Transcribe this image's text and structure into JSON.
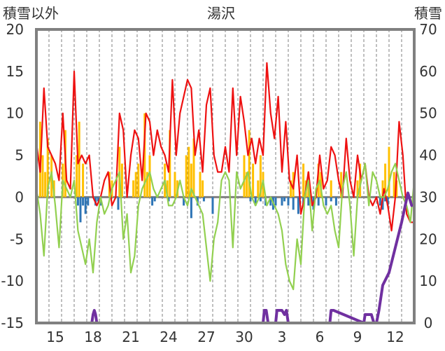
{
  "chart_data": {
    "type": "line",
    "title": "湯沢",
    "ylabel_left": "積雪以外",
    "ylabel_right": "積雪",
    "ylim_left": [
      -15,
      20
    ],
    "ylim_right": [
      0,
      70
    ],
    "yticks_left": [
      20,
      15,
      10,
      5,
      0,
      -5,
      -10,
      -15
    ],
    "yticks_right": [
      70,
      60,
      50,
      40,
      30,
      20,
      10,
      0
    ],
    "x_tick_labels": [
      "15",
      "18",
      "21",
      "24",
      "27",
      "30",
      "3",
      "6",
      "9",
      "12"
    ],
    "x_range_days": [
      0,
      30
    ],
    "x_tick_days": [
      1.5,
      4.5,
      7.5,
      10.5,
      13.5,
      16.5,
      19.5,
      22.5,
      25.5,
      28.5
    ],
    "grid": "vertical dashed",
    "colors": {
      "max_temp": "#ee1111",
      "min_temp": "#92d050",
      "precip": "#ffc000",
      "negative_bars": "#2e75b6",
      "snow_depth": "#7030a0",
      "zero_line": "#808080",
      "frame": "#808080"
    },
    "series": [
      {
        "key": "max_temp",
        "axis": "left",
        "x": [
          0,
          0.3,
          0.6,
          0.9,
          1.2,
          1.5,
          1.8,
          2.1,
          2.4,
          2.7,
          3.0,
          3.3,
          3.6,
          3.9,
          4.2,
          4.5,
          4.8,
          5.1,
          5.4,
          5.7,
          6.0,
          6.3,
          6.6,
          6.9,
          7.2,
          7.5,
          7.8,
          8.1,
          8.4,
          8.7,
          9.0,
          9.3,
          9.6,
          9.9,
          10.2,
          10.5,
          10.8,
          11.1,
          11.4,
          11.7,
          12.0,
          12.3,
          12.6,
          12.9,
          13.2,
          13.5,
          13.8,
          14.1,
          14.4,
          14.7,
          15.0,
          15.3,
          15.6,
          15.9,
          16.2,
          16.5,
          16.8,
          17.1,
          17.4,
          17.7,
          18.0,
          18.3,
          18.6,
          18.9,
          19.2,
          19.5,
          19.8,
          20.1,
          20.4,
          20.7,
          21.0,
          21.3,
          21.6,
          21.9,
          22.2,
          22.5,
          22.8,
          23.1,
          23.4,
          23.7,
          24.0,
          24.3,
          24.6,
          24.9,
          25.2,
          25.5,
          25.8,
          26.1,
          26.4,
          26.7,
          27.0,
          27.3,
          27.6,
          27.9,
          28.2,
          28.5,
          28.8,
          29.1,
          29.4,
          29.7,
          30.0
        ],
        "values": [
          6.5,
          3,
          13,
          6,
          5,
          4,
          2,
          10,
          2,
          1,
          15,
          4,
          5,
          4,
          5,
          0,
          -1,
          0,
          2,
          3,
          -1,
          0,
          10,
          8,
          0,
          5,
          8,
          7,
          2,
          10,
          9,
          5,
          8,
          6,
          5,
          3,
          14,
          5,
          10,
          12,
          14,
          13,
          5,
          8,
          3,
          11,
          13,
          5,
          3,
          3,
          6,
          3,
          13,
          5,
          12,
          9,
          5,
          7,
          4,
          7,
          5,
          16,
          10,
          7,
          12,
          3,
          9,
          2,
          1,
          5,
          -2,
          0,
          3,
          -1,
          0,
          5,
          1,
          2,
          6,
          5,
          2,
          0,
          7,
          2,
          0,
          5,
          2,
          4,
          0,
          -1,
          0,
          -2,
          1,
          -1,
          -4,
          0,
          9,
          5,
          -2,
          -3,
          -3
        ]
      },
      {
        "key": "min_temp",
        "axis": "left",
        "x": [
          0,
          0.3,
          0.6,
          0.9,
          1.2,
          1.5,
          1.8,
          2.1,
          2.4,
          2.7,
          3.0,
          3.3,
          3.6,
          3.9,
          4.2,
          4.5,
          4.8,
          5.1,
          5.4,
          5.7,
          6.0,
          6.3,
          6.6,
          6.9,
          7.2,
          7.5,
          7.8,
          8.1,
          8.4,
          8.7,
          9.0,
          9.3,
          9.6,
          9.9,
          10.2,
          10.5,
          10.8,
          11.1,
          11.4,
          11.7,
          12.0,
          12.3,
          12.6,
          12.9,
          13.2,
          13.5,
          13.8,
          14.1,
          14.4,
          14.7,
          15.0,
          15.3,
          15.6,
          15.9,
          16.2,
          16.5,
          16.8,
          17.1,
          17.4,
          17.7,
          18.0,
          18.3,
          18.6,
          18.9,
          19.2,
          19.5,
          19.8,
          20.1,
          20.4,
          20.7,
          21.0,
          21.3,
          21.6,
          21.9,
          22.2,
          22.5,
          22.8,
          23.1,
          23.4,
          23.7,
          24.0,
          24.3,
          24.6,
          24.9,
          25.2,
          25.5,
          25.8,
          26.1,
          26.4,
          26.7,
          27.0,
          27.3,
          27.6,
          27.9,
          28.2,
          28.5,
          28.8,
          29.1,
          29.4,
          29.7,
          30.0
        ],
        "values": [
          1,
          -2,
          -7,
          1,
          3,
          -1,
          -6,
          2,
          1,
          0,
          2,
          -4,
          -6,
          -8,
          -5,
          -9,
          -3,
          0,
          -2,
          -1,
          1,
          2,
          3,
          -5,
          -2,
          -9,
          -7,
          -1,
          1,
          2,
          3,
          1,
          0,
          1,
          2,
          -1,
          -1,
          0,
          2,
          0,
          -1,
          1,
          0,
          -1,
          -2,
          -6,
          -10,
          -5,
          -3,
          2,
          3,
          2,
          -6,
          3,
          1,
          2,
          3,
          0,
          -1,
          0,
          2,
          -1,
          0,
          -1,
          -2,
          -4,
          -8,
          -10,
          -11,
          -5,
          -8,
          0,
          2,
          -4,
          1,
          2,
          -1,
          -2,
          -1,
          -4,
          -6,
          1,
          3,
          -1,
          -7,
          0,
          2,
          4,
          -1,
          3,
          2,
          0,
          0,
          1,
          3,
          4,
          2,
          0,
          -1,
          -3,
          2
        ]
      },
      {
        "key": "snow_depth",
        "axis": "right",
        "x": [
          0,
          4.4,
          4.5,
          4.6,
          4.7,
          4.8,
          18.0,
          18.1,
          18.25,
          18.4,
          19.0,
          19.1,
          19.3,
          19.5,
          19.7,
          19.85,
          20.0,
          22.5,
          23.3,
          23.4,
          23.5,
          23.6,
          26.0,
          26.1,
          26.6,
          26.8,
          27.0,
          27.2,
          27.5,
          28.0,
          28.5,
          29.0,
          29.5,
          29.8
        ],
        "values": [
          0,
          0,
          2,
          3,
          2,
          0,
          0,
          3,
          3,
          0,
          0,
          3,
          3,
          3,
          2,
          3,
          0,
          0,
          0,
          3,
          3,
          3,
          0,
          2,
          2,
          0,
          0,
          3,
          9,
          12,
          18,
          24,
          31,
          28
        ]
      }
    ],
    "bars": [
      {
        "key": "precip",
        "axis": "left",
        "x": [
          0.3,
          0.5,
          0.7,
          0.9,
          1.2,
          1.4,
          2.1,
          2.3,
          3.2,
          3.4,
          3.7,
          5.8,
          6.0,
          6.6,
          6.8,
          7.7,
          7.9,
          8.1,
          8.6,
          8.8,
          9.0,
          10.2,
          10.4,
          10.6,
          11.0,
          11.2,
          11.9,
          12.1,
          12.3,
          12.5,
          13.0,
          13.2,
          16.5,
          16.7,
          16.9,
          17.2,
          17.6,
          17.8,
          18.0,
          20.2,
          20.4,
          21.2,
          21.4,
          21.6,
          22.4,
          22.6,
          23.4,
          24.2,
          25.5,
          25.7,
          27.5,
          27.7,
          28.0,
          28.4,
          28.6
        ],
        "values": [
          9,
          5,
          3,
          7,
          5,
          2,
          4,
          8,
          5,
          9,
          4,
          3,
          2,
          6,
          4,
          2,
          3,
          4,
          10,
          3,
          5,
          4,
          2,
          8,
          3,
          2,
          5,
          6,
          4,
          7,
          3,
          2,
          5,
          3,
          8,
          4,
          2,
          5,
          3,
          2,
          3,
          4,
          2,
          3,
          4,
          3,
          2,
          3,
          2,
          4,
          2,
          4,
          6,
          3,
          2
        ]
      },
      {
        "key": "negative_bars",
        "axis": "left",
        "x": [
          3.3,
          3.5,
          3.7,
          3.9,
          4.1,
          4.7,
          4.9,
          5.1,
          6.5,
          9.2,
          9.4,
          10.5,
          11.7,
          12.3,
          12.8,
          13.3,
          14.0,
          17.0,
          17.4,
          17.8,
          18.2,
          18.6,
          18.8,
          19.0,
          19.5,
          19.7,
          20.0,
          20.4,
          20.8,
          21.2,
          21.6,
          22.0,
          22.4,
          23.0,
          23.4,
          23.8,
          27.3,
          27.5,
          27.7,
          27.9
        ],
        "values": [
          -1,
          -3,
          -1,
          -2,
          -1,
          -1,
          -0.5,
          -1,
          -1.5,
          -1,
          -0.5,
          -0.5,
          -1,
          -2.5,
          -1,
          -0.5,
          -2,
          -0.5,
          -1,
          -0.5,
          -1,
          -1,
          -1.5,
          -1,
          -1,
          -0.5,
          -1,
          -1.5,
          -2,
          -1,
          -1,
          -1.5,
          -1,
          -1,
          -0.5,
          -1,
          -1,
          -1.5,
          -0.5,
          -1
        ]
      }
    ]
  }
}
